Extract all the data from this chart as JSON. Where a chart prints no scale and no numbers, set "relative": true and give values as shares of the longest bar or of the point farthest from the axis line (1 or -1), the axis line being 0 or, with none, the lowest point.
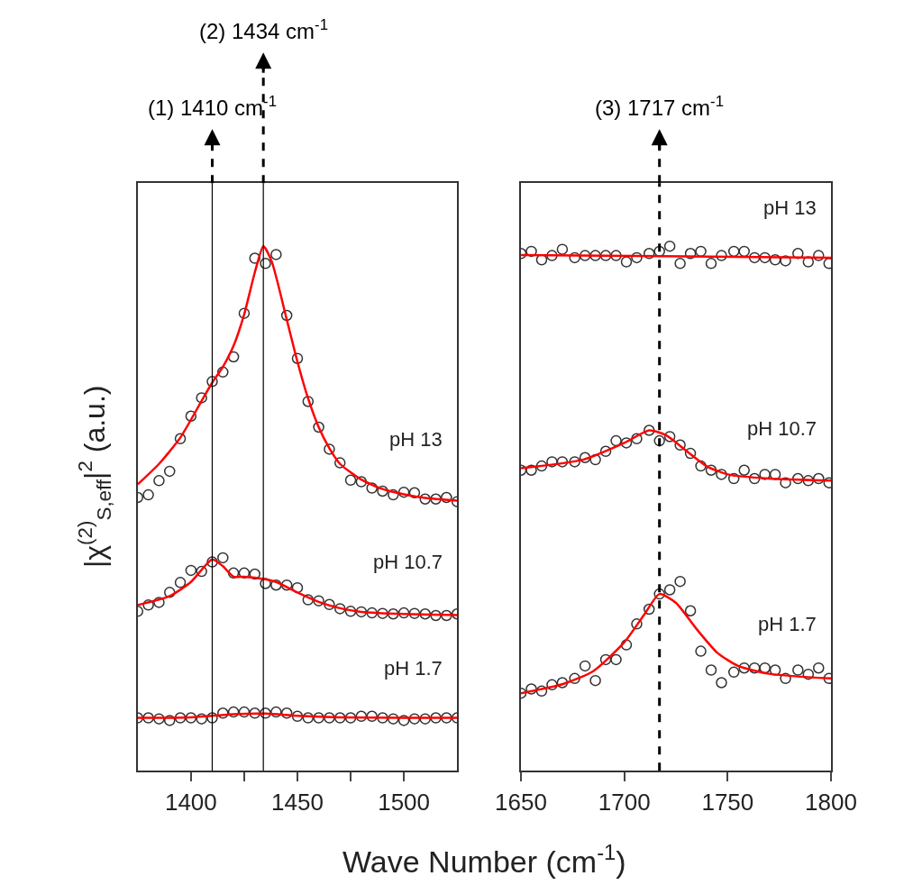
{
  "chart_data": [
    {
      "type": "line",
      "relative": true,
      "xlabel": "Wave Number (cm$^{-1}$)",
      "ylabel": "|χ$^{(2)}$$_{S,eff}$|$^{2}$ (a.u.)",
      "xlim": [
        1375,
        1525
      ],
      "xticks": [
        1400,
        {
          "value": 1425,
          "label": null
        },
        1450,
        {
          "value": 1475,
          "label": null
        },
        1500
      ],
      "legend": false,
      "tick_labels": "x",
      "ref_lines": [
        {
          "axis": "x",
          "value": 1410,
          "label": "(1) 1410 cm$^{-1}$",
          "line_style": "solid",
          "color": "#000000"
        },
        {
          "axis": "x",
          "value": 1434,
          "label": "(2) 1434 cm$^{-1}$",
          "line_style": "solid",
          "color": "#000000"
        }
      ],
      "series": [
        {
          "type": "scatter",
          "marker": "circle",
          "color": "#333333",
          "x": [
            1375,
            1380,
            1385,
            1390,
            1395,
            1400,
            1405,
            1410,
            1415,
            1420,
            1425,
            1430,
            1435,
            1440,
            1445,
            1450,
            1455,
            1460,
            1465,
            1470,
            1475,
            1480,
            1485,
            1490,
            1495,
            1500,
            1505,
            1510,
            1515,
            1520,
            1525
          ],
          "values": [
            0.521,
            0.526,
            0.553,
            0.571,
            0.633,
            0.676,
            0.711,
            0.742,
            0.76,
            0.789,
            0.872,
            0.977,
            0.967,
            0.984,
            0.868,
            0.786,
            0.704,
            0.655,
            0.613,
            0.587,
            0.554,
            0.551,
            0.539,
            0.533,
            0.526,
            0.531,
            0.53,
            0.518,
            0.518,
            0.521,
            0.513
          ]
        },
        {
          "name": "pH 13",
          "color": "#ff0000",
          "x": [
            1375,
            1385,
            1395,
            1405,
            1410,
            1415,
            1420,
            1425,
            1430,
            1434,
            1438,
            1445,
            1450,
            1455,
            1460,
            1465,
            1470,
            1480,
            1490,
            1500,
            1510,
            1525
          ],
          "values": [
            0.546,
            0.585,
            0.635,
            0.705,
            0.74,
            0.77,
            0.81,
            0.87,
            0.95,
            1.0,
            0.97,
            0.86,
            0.78,
            0.71,
            0.655,
            0.615,
            0.585,
            0.555,
            0.537,
            0.527,
            0.52,
            0.515
          ]
        },
        {
          "type": "scatter",
          "marker": "circle",
          "color": "#333333",
          "x": [
            1375,
            1380,
            1385,
            1390,
            1395,
            1400,
            1405,
            1410,
            1415,
            1420,
            1425,
            1430,
            1435,
            1440,
            1445,
            1450,
            1455,
            1460,
            1465,
            1470,
            1475,
            1480,
            1485,
            1490,
            1495,
            1500,
            1505,
            1510,
            1515,
            1520,
            1525
          ],
          "values": [
            0.304,
            0.316,
            0.321,
            0.34,
            0.359,
            0.382,
            0.38,
            0.398,
            0.406,
            0.377,
            0.377,
            0.375,
            0.357,
            0.354,
            0.354,
            0.349,
            0.326,
            0.324,
            0.317,
            0.309,
            0.304,
            0.303,
            0.301,
            0.3,
            0.299,
            0.301,
            0.3,
            0.299,
            0.296,
            0.296,
            0.299
          ]
        },
        {
          "name": "pH 10.7",
          "color": "#ff0000",
          "x": [
            1375,
            1390,
            1400,
            1410,
            1415,
            1420,
            1425,
            1435,
            1440,
            1450,
            1460,
            1470,
            1480,
            1500,
            1525
          ],
          "values": [
            0.316,
            0.333,
            0.36,
            0.403,
            0.39,
            0.37,
            0.37,
            0.365,
            0.36,
            0.34,
            0.322,
            0.31,
            0.303,
            0.299,
            0.297
          ]
        },
        {
          "type": "scatter",
          "marker": "circle",
          "color": "#333333",
          "x": [
            1375,
            1380,
            1385,
            1390,
            1395,
            1400,
            1405,
            1410,
            1415,
            1420,
            1425,
            1430,
            1435,
            1440,
            1445,
            1450,
            1455,
            1460,
            1465,
            1470,
            1475,
            1480,
            1485,
            1490,
            1495,
            1500,
            1505,
            1510,
            1515,
            1520,
            1525
          ],
          "values": [
            0.101,
            0.101,
            0.099,
            0.096,
            0.101,
            0.101,
            0.099,
            0.101,
            0.11,
            0.112,
            0.112,
            0.11,
            0.11,
            0.112,
            0.11,
            0.104,
            0.101,
            0.101,
            0.101,
            0.101,
            0.101,
            0.104,
            0.104,
            0.101,
            0.099,
            0.096,
            0.099,
            0.099,
            0.101,
            0.101,
            0.101
          ]
        },
        {
          "name": "pH 1.7",
          "color": "#ff0000",
          "x": [
            1375,
            1400,
            1420,
            1435,
            1450,
            1470,
            1500,
            1525
          ],
          "values": [
            0.101,
            0.102,
            0.108,
            0.109,
            0.105,
            0.102,
            0.101,
            0.101
          ]
        }
      ]
    },
    {
      "type": "line",
      "relative": true,
      "xlim": [
        1650,
        1800
      ],
      "xticks": [
        1650,
        1700,
        1750,
        1800
      ],
      "legend": false,
      "tick_labels": "x",
      "ref_lines": [
        {
          "axis": "x",
          "value": 1717,
          "label": "(3) 1717 cm$^{-1}$",
          "line_style": "dashed",
          "color": "#000000"
        }
      ],
      "series": [
        {
          "type": "scatter",
          "marker": "circle",
          "color": "#333333",
          "x": [
            1650,
            1655,
            1660,
            1665,
            1670,
            1676,
            1681,
            1686,
            1691,
            1696,
            1701,
            1706,
            1712,
            1717,
            1722,
            1727,
            1732,
            1737,
            1742,
            1747,
            1753,
            1758,
            1763,
            1768,
            1773,
            1778,
            1784,
            1789,
            1794,
            1799
          ],
          "values": [
            0.986,
            0.99,
            0.974,
            0.982,
            0.994,
            0.978,
            0.982,
            0.982,
            0.982,
            0.982,
            0.97,
            0.978,
            0.986,
            0.99,
            1.0,
            0.967,
            0.986,
            0.99,
            0.967,
            0.982,
            0.99,
            0.99,
            0.978,
            0.978,
            0.974,
            0.972,
            0.986,
            0.97,
            0.982,
            0.967
          ]
        },
        {
          "name": "pH 13",
          "color": "#ff0000",
          "x": [
            1650,
            1800
          ],
          "values": [
            0.983,
            0.978
          ]
        },
        {
          "type": "scatter",
          "marker": "circle",
          "color": "#333333",
          "x": [
            1650,
            1655,
            1660,
            1665,
            1670,
            1676,
            1681,
            1686,
            1691,
            1696,
            1701,
            1706,
            1712,
            1717,
            1722,
            1727,
            1732,
            1737,
            1742,
            1747,
            1753,
            1758,
            1763,
            1768,
            1773,
            1778,
            1784,
            1789,
            1794,
            1799
          ],
          "values": [
            0.573,
            0.573,
            0.581,
            0.589,
            0.589,
            0.589,
            0.597,
            0.593,
            0.609,
            0.629,
            0.625,
            0.633,
            0.649,
            0.629,
            0.637,
            0.621,
            0.605,
            0.581,
            0.573,
            0.565,
            0.557,
            0.573,
            0.557,
            0.565,
            0.565,
            0.549,
            0.557,
            0.553,
            0.557,
            0.549
          ]
        },
        {
          "name": "pH 10.7",
          "color": "#ff0000",
          "x": [
            1650,
            1680,
            1700,
            1712,
            1720,
            1730,
            1740,
            1750,
            1770,
            1800
          ],
          "values": [
            0.577,
            0.593,
            0.625,
            0.649,
            0.64,
            0.61,
            0.58,
            0.565,
            0.557,
            0.553
          ]
        },
        {
          "type": "scatter",
          "marker": "circle",
          "color": "#333333",
          "x": [
            1650,
            1655,
            1660,
            1665,
            1670,
            1676,
            1681,
            1686,
            1691,
            1696,
            1701,
            1706,
            1712,
            1717,
            1722,
            1727,
            1732,
            1737,
            1742,
            1747,
            1753,
            1758,
            1763,
            1768,
            1773,
            1778,
            1784,
            1789,
            1794,
            1799
          ],
          "values": [
            0.148,
            0.156,
            0.152,
            0.164,
            0.168,
            0.176,
            0.2,
            0.172,
            0.212,
            0.212,
            0.24,
            0.28,
            0.308,
            0.337,
            0.345,
            0.361,
            0.305,
            0.228,
            0.192,
            0.168,
            0.188,
            0.196,
            0.196,
            0.196,
            0.192,
            0.176,
            0.192,
            0.184,
            0.196,
            0.176
          ]
        },
        {
          "name": "pH 1.7",
          "color": "#ff0000",
          "x": [
            1650,
            1670,
            1685,
            1700,
            1710,
            1717,
            1725,
            1735,
            1745,
            1755,
            1770,
            1800
          ],
          "values": [
            0.148,
            0.165,
            0.19,
            0.245,
            0.3,
            0.337,
            0.32,
            0.27,
            0.225,
            0.2,
            0.185,
            0.176
          ]
        }
      ]
    }
  ]
}
